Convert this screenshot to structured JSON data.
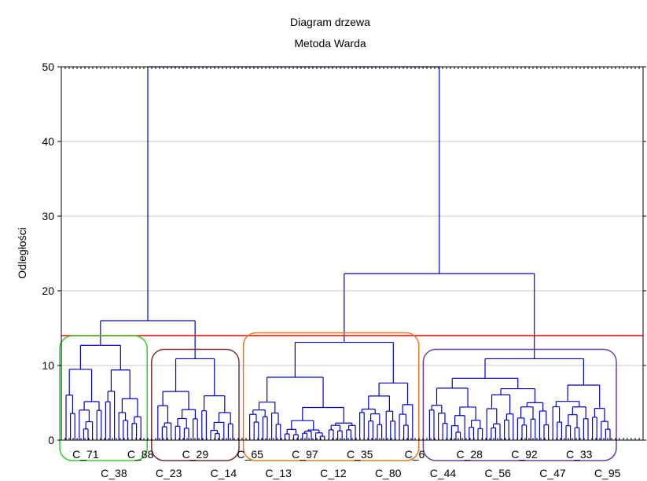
{
  "chart_data": {
    "type": "dendrogram",
    "title": "Diagram drzewa",
    "subtitle": "Metoda Warda",
    "ylabel": "Odległości",
    "ylim": [
      0,
      50
    ],
    "yticks": [
      0,
      10,
      20,
      30,
      40,
      50
    ],
    "grid": true,
    "colors": {
      "tree": "#0000cc",
      "cut_line": "#ff0000",
      "grid": "#c8c8c8",
      "frame": "#000000"
    },
    "cut_height": 14,
    "root_height": 50,
    "top_links": [
      {
        "name": "root",
        "height": 50
      },
      {
        "name": "left-main",
        "height": 16
      },
      {
        "name": "right-main",
        "height": 22.3
      }
    ],
    "clusters": [
      {
        "name": "cluster-1",
        "color": "#33cc33",
        "height": 12.7,
        "first_label": "C_71",
        "last_label": "C_23"
      },
      {
        "name": "cluster-2",
        "color": "#7a2e2e",
        "height": 10.9,
        "first_label": "C_29",
        "last_label": "C_65"
      },
      {
        "name": "cluster-3",
        "color": "#e07b1a",
        "height": 13.1,
        "first_label": "C_13",
        "last_label": "C_6"
      },
      {
        "name": "cluster-4",
        "color": "#6a3fa0",
        "height": 10.9,
        "first_label": "C_44",
        "last_label": "C_95"
      }
    ],
    "labels_row1": [
      "C_71",
      "C_88",
      "C_29",
      "C_65",
      "C_97",
      "C_35",
      "C_6",
      "C_28",
      "C_92",
      "C_33"
    ],
    "labels_row2": [
      "C_38",
      "C_23",
      "C_14",
      "C_13",
      "C_12",
      "C_80",
      "C_44",
      "C_56",
      "C_47",
      "C_95"
    ]
  }
}
